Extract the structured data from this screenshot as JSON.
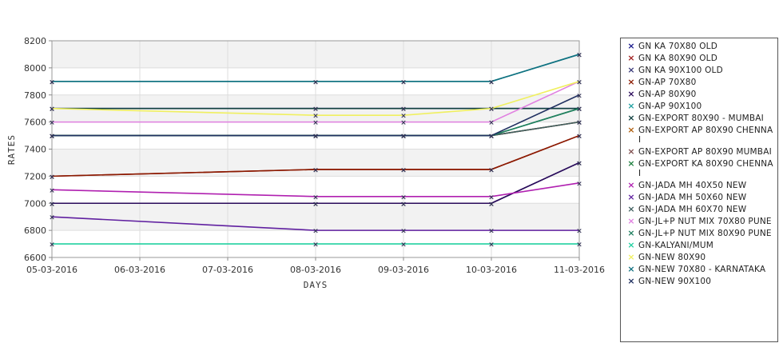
{
  "chart_data": {
    "type": "line",
    "xlabel": "DAYS",
    "ylabel": "RATES",
    "ylim": [
      6600,
      8200
    ],
    "yticks": [
      6600,
      6800,
      7000,
      7200,
      7400,
      7600,
      7800,
      8000,
      8200
    ],
    "categories": [
      "05-03-2016",
      "06-03-2016",
      "07-03-2016",
      "08-03-2016",
      "09-03-2016",
      "10-03-2016",
      "11-03-2016"
    ],
    "grid": true,
    "legend_position": "right",
    "series": [
      {
        "name": "GN KA 70X80 OLD",
        "color": "#1a1a8c",
        "x": [
          0,
          3,
          4,
          5,
          6
        ],
        "values": [
          7700,
          7700,
          7700,
          7700,
          7700
        ]
      },
      {
        "name": "GN KA 80X90 OLD",
        "color": "#a02020",
        "x": [
          0,
          3,
          4,
          5,
          6
        ],
        "values": [
          7200,
          7250,
          7250,
          7250,
          7500
        ]
      },
      {
        "name": "GN KA 90X100 OLD",
        "color": "#3a3a7a",
        "x": [
          0,
          3,
          4,
          5,
          6
        ],
        "values": [
          7000,
          7000,
          7000,
          7000,
          7300
        ]
      },
      {
        "name": "GN-AP 70X80",
        "color": "#8b1a00",
        "x": [
          0,
          3,
          4,
          5,
          6
        ],
        "values": [
          7200,
          7250,
          7250,
          7250,
          7500
        ]
      },
      {
        "name": "GN-AP 80X90",
        "color": "#2a0a5a",
        "x": [
          0,
          3,
          4,
          5,
          6
        ],
        "values": [
          7000,
          7000,
          7000,
          7000,
          7300
        ]
      },
      {
        "name": "GN-AP 90X100",
        "color": "#20a0a0",
        "x": [
          0,
          3,
          4,
          5,
          6
        ],
        "values": [
          7900,
          7900,
          7900,
          7900,
          8100
        ]
      },
      {
        "name": "GN-EXPORT 80X90 - MUMBAI",
        "color": "#104040",
        "x": [
          0,
          3,
          4,
          5,
          6
        ],
        "values": [
          7700,
          7700,
          7700,
          7700,
          7700
        ]
      },
      {
        "name": "GN-EXPORT AP 80X90 CHENNAI",
        "color": "#b06010",
        "x": [
          0,
          3,
          4,
          5,
          6
        ],
        "values": [
          7500,
          7500,
          7500,
          7500,
          7600
        ]
      },
      {
        "name": "GN-EXPORT AP 80X90 MUMBAI",
        "color": "#805050",
        "x": [
          0,
          3,
          4,
          5,
          6
        ],
        "values": [
          7500,
          7500,
          7500,
          7500,
          7600
        ]
      },
      {
        "name": "GN-EXPORT KA 80X90 CHENNAI",
        "color": "#208040",
        "x": [
          0,
          3,
          4,
          5,
          6
        ],
        "values": [
          7500,
          7500,
          7500,
          7500,
          7700
        ]
      },
      {
        "name": "GN-JADA MH 40X50 NEW",
        "color": "#b020b0",
        "x": [
          0,
          3,
          4,
          5,
          6
        ],
        "values": [
          7100,
          7050,
          7050,
          7050,
          7150
        ]
      },
      {
        "name": "GN-JADA MH 50X60 NEW",
        "color": "#6020a0",
        "x": [
          0,
          3,
          4,
          5,
          6
        ],
        "values": [
          6900,
          6800,
          6800,
          6800,
          6800
        ]
      },
      {
        "name": "GN-JADA MH 60X70 NEW",
        "color": "#406060",
        "x": [
          0,
          3,
          4,
          5,
          6
        ],
        "values": [
          7500,
          7500,
          7500,
          7500,
          7600
        ]
      },
      {
        "name": "GN-JL+P NUT MIX 70X80 PUNE",
        "color": "#e080e0",
        "x": [
          0,
          3,
          4,
          5,
          6
        ],
        "values": [
          7600,
          7600,
          7600,
          7600,
          7900
        ]
      },
      {
        "name": "GN-JL+P NUT MIX 80X90 PUNE",
        "color": "#208060",
        "x": [
          0,
          3,
          4,
          5,
          6
        ],
        "values": [
          7500,
          7500,
          7500,
          7500,
          7700
        ]
      },
      {
        "name": "GN-KALYANI/MUM",
        "color": "#20d0a0",
        "x": [
          0,
          3,
          4,
          5,
          6
        ],
        "values": [
          6700,
          6700,
          6700,
          6700,
          6700
        ]
      },
      {
        "name": "GN-NEW   80X90",
        "color": "#f0f060",
        "x": [
          0,
          3,
          4,
          5,
          6
        ],
        "values": [
          7700,
          7650,
          7650,
          7700,
          7900
        ]
      },
      {
        "name": "GN-NEW  70X80 - KARNATAKA",
        "color": "#107080",
        "x": [
          0,
          3,
          4,
          5,
          6
        ],
        "values": [
          7900,
          7900,
          7900,
          7900,
          8100
        ]
      },
      {
        "name": "GN-NEW 90X100",
        "color": "#203060",
        "x": [
          0,
          3,
          4,
          5,
          6
        ],
        "values": [
          7500,
          7500,
          7500,
          7500,
          7800
        ]
      }
    ]
  }
}
